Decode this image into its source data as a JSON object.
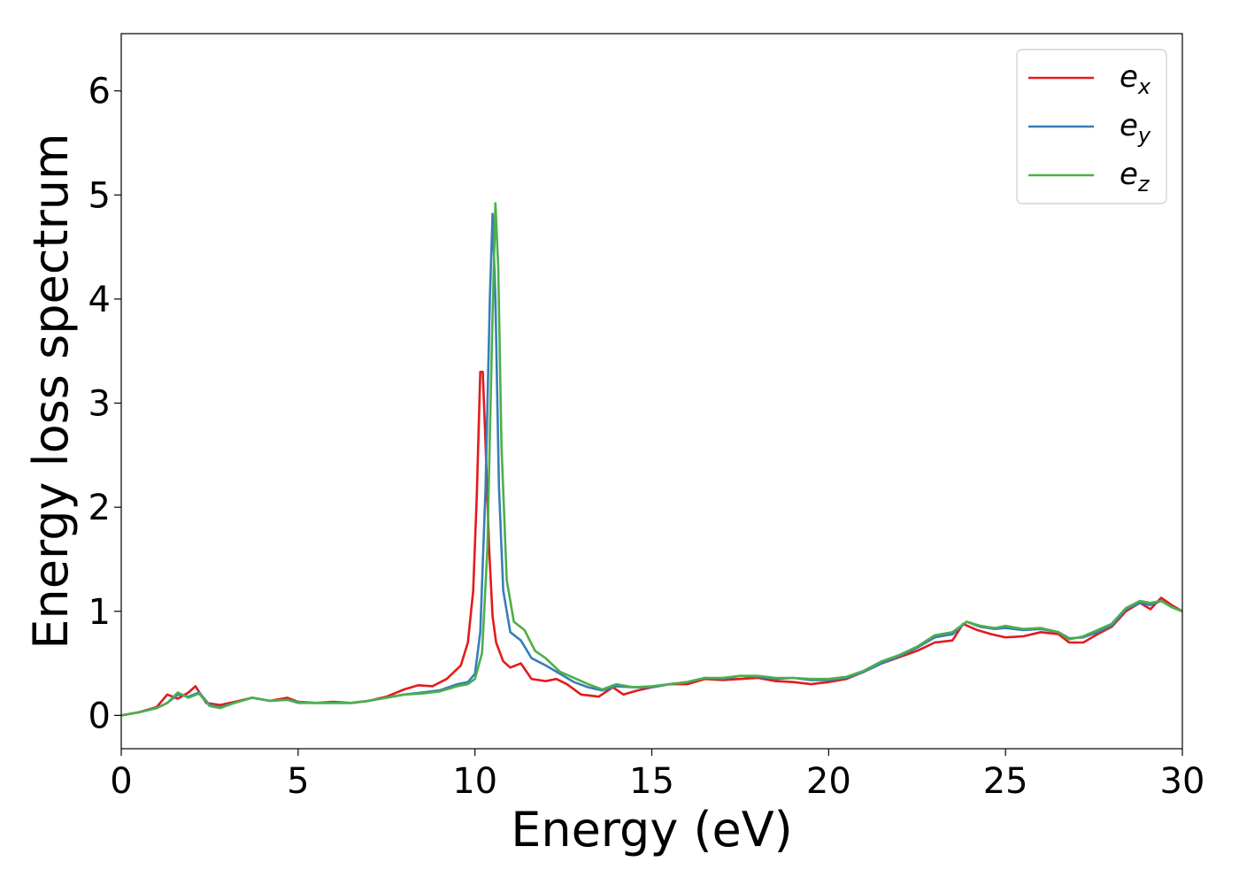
{
  "chart_data": {
    "type": "line",
    "xlabel": "Energy (eV)",
    "ylabel": "Energy loss spectrum",
    "xlim": [
      0,
      30
    ],
    "ylim": [
      -0.32,
      6.55
    ],
    "xticks": [
      0,
      5,
      10,
      15,
      20,
      25,
      30
    ],
    "yticks": [
      0,
      1,
      2,
      3,
      4,
      5,
      6
    ],
    "grid": false,
    "legend_position": "top-right",
    "series": [
      {
        "name": "e_x",
        "label_base": "e",
        "label_sub": "x",
        "color": "#e41a1c",
        "points": [
          [
            0,
            0
          ],
          [
            0.5,
            0.03
          ],
          [
            1.0,
            0.08
          ],
          [
            1.3,
            0.2
          ],
          [
            1.6,
            0.16
          ],
          [
            1.9,
            0.22
          ],
          [
            2.1,
            0.28
          ],
          [
            2.4,
            0.12
          ],
          [
            2.8,
            0.1
          ],
          [
            3.2,
            0.13
          ],
          [
            3.7,
            0.17
          ],
          [
            4.2,
            0.14
          ],
          [
            4.7,
            0.17
          ],
          [
            5.0,
            0.13
          ],
          [
            5.5,
            0.12
          ],
          [
            6.0,
            0.13
          ],
          [
            6.5,
            0.12
          ],
          [
            7.0,
            0.14
          ],
          [
            7.5,
            0.18
          ],
          [
            8.0,
            0.25
          ],
          [
            8.4,
            0.29
          ],
          [
            8.8,
            0.28
          ],
          [
            9.2,
            0.35
          ],
          [
            9.6,
            0.48
          ],
          [
            9.8,
            0.7
          ],
          [
            9.95,
            1.2
          ],
          [
            10.05,
            2.1
          ],
          [
            10.15,
            3.3
          ],
          [
            10.22,
            3.3
          ],
          [
            10.3,
            2.6
          ],
          [
            10.4,
            1.6
          ],
          [
            10.5,
            0.95
          ],
          [
            10.6,
            0.7
          ],
          [
            10.8,
            0.52
          ],
          [
            11.0,
            0.46
          ],
          [
            11.3,
            0.5
          ],
          [
            11.6,
            0.35
          ],
          [
            12.0,
            0.33
          ],
          [
            12.3,
            0.35
          ],
          [
            12.6,
            0.3
          ],
          [
            13.0,
            0.2
          ],
          [
            13.5,
            0.18
          ],
          [
            13.9,
            0.27
          ],
          [
            14.2,
            0.2
          ],
          [
            14.6,
            0.24
          ],
          [
            15.0,
            0.27
          ],
          [
            15.5,
            0.3
          ],
          [
            16.0,
            0.3
          ],
          [
            16.5,
            0.35
          ],
          [
            17.0,
            0.34
          ],
          [
            17.5,
            0.35
          ],
          [
            18.0,
            0.36
          ],
          [
            18.5,
            0.33
          ],
          [
            19.0,
            0.32
          ],
          [
            19.5,
            0.3
          ],
          [
            20.0,
            0.32
          ],
          [
            20.5,
            0.35
          ],
          [
            21.0,
            0.42
          ],
          [
            21.5,
            0.5
          ],
          [
            22.0,
            0.56
          ],
          [
            22.5,
            0.62
          ],
          [
            23.0,
            0.7
          ],
          [
            23.5,
            0.72
          ],
          [
            23.8,
            0.88
          ],
          [
            24.2,
            0.82
          ],
          [
            24.6,
            0.78
          ],
          [
            25.0,
            0.75
          ],
          [
            25.5,
            0.76
          ],
          [
            26.0,
            0.8
          ],
          [
            26.5,
            0.78
          ],
          [
            26.8,
            0.7
          ],
          [
            27.2,
            0.7
          ],
          [
            27.6,
            0.78
          ],
          [
            28.0,
            0.85
          ],
          [
            28.4,
            1.0
          ],
          [
            28.8,
            1.08
          ],
          [
            29.1,
            1.02
          ],
          [
            29.4,
            1.13
          ],
          [
            29.7,
            1.06
          ],
          [
            30.0,
            1.0
          ]
        ]
      },
      {
        "name": "e_y",
        "label_base": "e",
        "label_sub": "y",
        "color": "#377eb8",
        "points": [
          [
            0,
            0
          ],
          [
            0.5,
            0.03
          ],
          [
            1.0,
            0.07
          ],
          [
            1.3,
            0.12
          ],
          [
            1.6,
            0.2
          ],
          [
            1.9,
            0.18
          ],
          [
            2.2,
            0.22
          ],
          [
            2.5,
            0.1
          ],
          [
            2.8,
            0.08
          ],
          [
            3.2,
            0.12
          ],
          [
            3.7,
            0.17
          ],
          [
            4.2,
            0.14
          ],
          [
            4.7,
            0.15
          ],
          [
            5.0,
            0.13
          ],
          [
            5.5,
            0.12
          ],
          [
            6.0,
            0.12
          ],
          [
            6.5,
            0.12
          ],
          [
            7.0,
            0.14
          ],
          [
            7.5,
            0.17
          ],
          [
            8.0,
            0.2
          ],
          [
            8.5,
            0.22
          ],
          [
            9.0,
            0.24
          ],
          [
            9.5,
            0.3
          ],
          [
            9.8,
            0.32
          ],
          [
            10.0,
            0.4
          ],
          [
            10.15,
            0.8
          ],
          [
            10.3,
            2.2
          ],
          [
            10.42,
            4.0
          ],
          [
            10.5,
            4.82
          ],
          [
            10.58,
            4.0
          ],
          [
            10.68,
            2.2
          ],
          [
            10.8,
            1.2
          ],
          [
            11.0,
            0.8
          ],
          [
            11.3,
            0.72
          ],
          [
            11.6,
            0.55
          ],
          [
            12.0,
            0.48
          ],
          [
            12.4,
            0.4
          ],
          [
            12.8,
            0.32
          ],
          [
            13.2,
            0.27
          ],
          [
            13.6,
            0.24
          ],
          [
            14.0,
            0.28
          ],
          [
            14.5,
            0.27
          ],
          [
            15.0,
            0.27
          ],
          [
            15.5,
            0.3
          ],
          [
            16.0,
            0.32
          ],
          [
            16.5,
            0.36
          ],
          [
            17.0,
            0.35
          ],
          [
            17.5,
            0.38
          ],
          [
            18.0,
            0.37
          ],
          [
            18.5,
            0.35
          ],
          [
            19.0,
            0.36
          ],
          [
            19.5,
            0.34
          ],
          [
            20.0,
            0.34
          ],
          [
            20.5,
            0.36
          ],
          [
            21.0,
            0.42
          ],
          [
            21.5,
            0.5
          ],
          [
            22.0,
            0.57
          ],
          [
            22.5,
            0.65
          ],
          [
            23.0,
            0.75
          ],
          [
            23.5,
            0.78
          ],
          [
            23.9,
            0.9
          ],
          [
            24.3,
            0.85
          ],
          [
            24.7,
            0.83
          ],
          [
            25.0,
            0.84
          ],
          [
            25.5,
            0.82
          ],
          [
            26.0,
            0.83
          ],
          [
            26.5,
            0.8
          ],
          [
            26.8,
            0.74
          ],
          [
            27.2,
            0.75
          ],
          [
            27.6,
            0.8
          ],
          [
            28.0,
            0.86
          ],
          [
            28.4,
            1.02
          ],
          [
            28.8,
            1.08
          ],
          [
            29.1,
            1.06
          ],
          [
            29.4,
            1.1
          ],
          [
            29.7,
            1.04
          ],
          [
            30.0,
            1.0
          ]
        ]
      },
      {
        "name": "e_z",
        "label_base": "e",
        "label_sub": "z",
        "color": "#4daf4a",
        "points": [
          [
            0,
            0
          ],
          [
            0.5,
            0.03
          ],
          [
            1.0,
            0.07
          ],
          [
            1.3,
            0.12
          ],
          [
            1.6,
            0.22
          ],
          [
            1.9,
            0.17
          ],
          [
            2.2,
            0.21
          ],
          [
            2.5,
            0.09
          ],
          [
            2.8,
            0.07
          ],
          [
            3.2,
            0.12
          ],
          [
            3.7,
            0.17
          ],
          [
            4.2,
            0.14
          ],
          [
            4.7,
            0.15
          ],
          [
            5.0,
            0.12
          ],
          [
            5.5,
            0.12
          ],
          [
            6.0,
            0.12
          ],
          [
            6.5,
            0.12
          ],
          [
            7.0,
            0.14
          ],
          [
            7.5,
            0.17
          ],
          [
            8.0,
            0.2
          ],
          [
            8.5,
            0.21
          ],
          [
            9.0,
            0.23
          ],
          [
            9.5,
            0.28
          ],
          [
            9.8,
            0.3
          ],
          [
            10.0,
            0.35
          ],
          [
            10.2,
            0.6
          ],
          [
            10.35,
            1.6
          ],
          [
            10.48,
            3.6
          ],
          [
            10.58,
            4.92
          ],
          [
            10.66,
            4.3
          ],
          [
            10.75,
            2.6
          ],
          [
            10.9,
            1.3
          ],
          [
            11.1,
            0.9
          ],
          [
            11.4,
            0.82
          ],
          [
            11.7,
            0.62
          ],
          [
            12.0,
            0.55
          ],
          [
            12.4,
            0.42
          ],
          [
            12.8,
            0.36
          ],
          [
            13.2,
            0.3
          ],
          [
            13.6,
            0.25
          ],
          [
            14.0,
            0.3
          ],
          [
            14.5,
            0.27
          ],
          [
            15.0,
            0.28
          ],
          [
            15.5,
            0.3
          ],
          [
            16.0,
            0.32
          ],
          [
            16.5,
            0.36
          ],
          [
            17.0,
            0.36
          ],
          [
            17.5,
            0.38
          ],
          [
            18.0,
            0.38
          ],
          [
            18.5,
            0.36
          ],
          [
            19.0,
            0.36
          ],
          [
            19.5,
            0.35
          ],
          [
            20.0,
            0.35
          ],
          [
            20.5,
            0.37
          ],
          [
            21.0,
            0.43
          ],
          [
            21.5,
            0.52
          ],
          [
            22.0,
            0.58
          ],
          [
            22.5,
            0.66
          ],
          [
            23.0,
            0.77
          ],
          [
            23.5,
            0.8
          ],
          [
            23.9,
            0.9
          ],
          [
            24.3,
            0.86
          ],
          [
            24.7,
            0.84
          ],
          [
            25.0,
            0.86
          ],
          [
            25.5,
            0.83
          ],
          [
            26.0,
            0.84
          ],
          [
            26.5,
            0.8
          ],
          [
            26.8,
            0.73
          ],
          [
            27.2,
            0.76
          ],
          [
            27.6,
            0.82
          ],
          [
            28.0,
            0.88
          ],
          [
            28.4,
            1.03
          ],
          [
            28.8,
            1.1
          ],
          [
            29.1,
            1.08
          ],
          [
            29.4,
            1.1
          ],
          [
            29.7,
            1.04
          ],
          [
            30.0,
            1.0
          ]
        ]
      }
    ]
  }
}
